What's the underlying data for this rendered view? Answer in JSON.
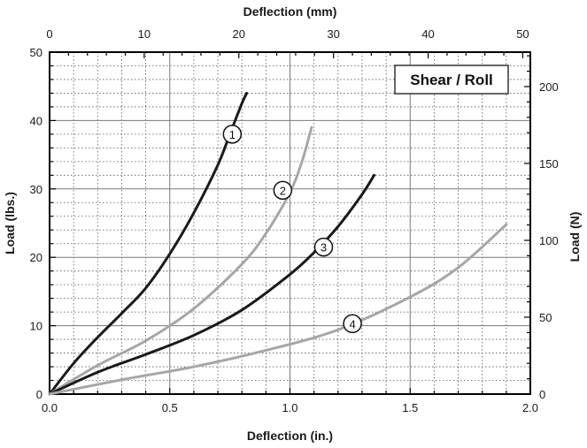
{
  "chart_data": {
    "type": "line",
    "title": "",
    "annotation": "Shear / Roll",
    "xlabel_bottom": "Deflection (in.)",
    "xlabel_top": "Deflection (mm)",
    "ylabel_left": "Load (lbs.)",
    "ylabel_right": "Load (N)",
    "xlim": [
      0,
      2.0
    ],
    "ylim": [
      0,
      50
    ],
    "x_ticks": [
      "0.0",
      "0.5",
      "1.0",
      "1.5",
      "2.0"
    ],
    "y_ticks": [
      "0",
      "10",
      "20",
      "30",
      "40",
      "50"
    ],
    "top_x_ticks": [
      "0",
      "10",
      "20",
      "30",
      "40",
      "50"
    ],
    "top_xlim": [
      0,
      50.8
    ],
    "right_y_ticks": [
      "0",
      "50",
      "100",
      "150",
      "200"
    ],
    "right_ylim": [
      0,
      222.4
    ],
    "grid": true,
    "series": [
      {
        "name": "1",
        "color": "#1a1a1a",
        "x": [
          0,
          0.1,
          0.2,
          0.3,
          0.4,
          0.5,
          0.6,
          0.7,
          0.75,
          0.8,
          0.82
        ],
        "y": [
          0,
          4.5,
          8.3,
          11.8,
          15.5,
          20.5,
          26.5,
          33.5,
          38,
          42.5,
          44
        ],
        "marker": {
          "label": "1",
          "x": 0.76,
          "y": 38
        }
      },
      {
        "name": "2",
        "color": "#a6a6a6",
        "x": [
          0,
          0.2,
          0.4,
          0.6,
          0.8,
          0.9,
          1.0,
          1.05,
          1.09
        ],
        "y": [
          0,
          4.2,
          7.8,
          12.5,
          19,
          23.5,
          29.5,
          34,
          39
        ],
        "marker": {
          "label": "2",
          "x": 0.97,
          "y": 29.8
        }
      },
      {
        "name": "3",
        "color": "#1a1a1a",
        "x": [
          0,
          0.2,
          0.4,
          0.6,
          0.8,
          1.0,
          1.1,
          1.2,
          1.3,
          1.35
        ],
        "y": [
          0,
          3.2,
          5.8,
          8.6,
          12.3,
          17.5,
          20.7,
          24.5,
          29.2,
          32
        ],
        "marker": {
          "label": "3",
          "x": 1.14,
          "y": 21.5
        }
      },
      {
        "name": "4",
        "color": "#a6a6a6",
        "x": [
          0,
          0.3,
          0.6,
          0.9,
          1.2,
          1.5,
          1.7,
          1.9
        ],
        "y": [
          0,
          2.1,
          4.0,
          6.4,
          9.4,
          14.2,
          18.5,
          24.8
        ],
        "marker": {
          "label": "4",
          "x": 1.26,
          "y": 10.3
        }
      }
    ]
  }
}
